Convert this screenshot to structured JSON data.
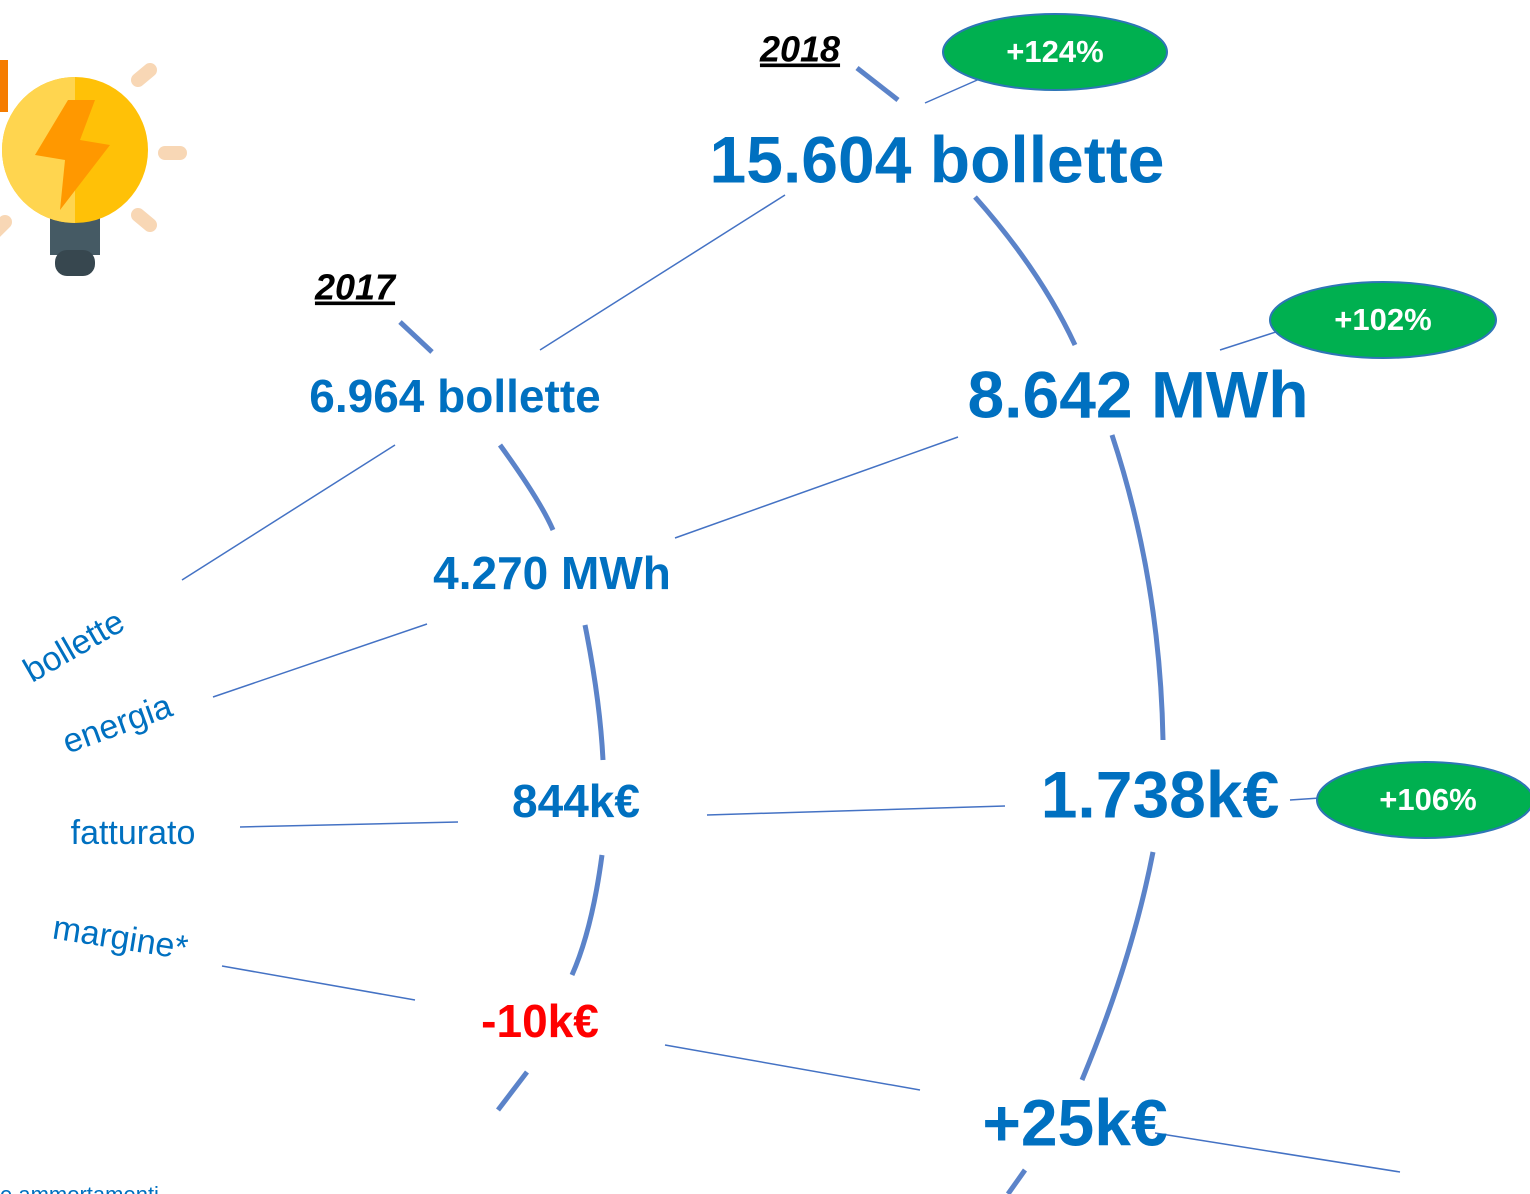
{
  "years": {
    "left": "2017",
    "right": "2018"
  },
  "row_labels": [
    "bollette",
    "energia",
    "fatturato",
    "margine*"
  ],
  "values_2017": [
    "6.964 bollette",
    "4.270 MWh",
    "844k€",
    "-10k€"
  ],
  "values_2018": [
    "15.604 bollette",
    "8.642 MWh",
    "1.738k€",
    "+25k€"
  ],
  "changes": [
    "+124%",
    "+102%",
    "+106%"
  ],
  "footnote": "e ammortamenti"
}
